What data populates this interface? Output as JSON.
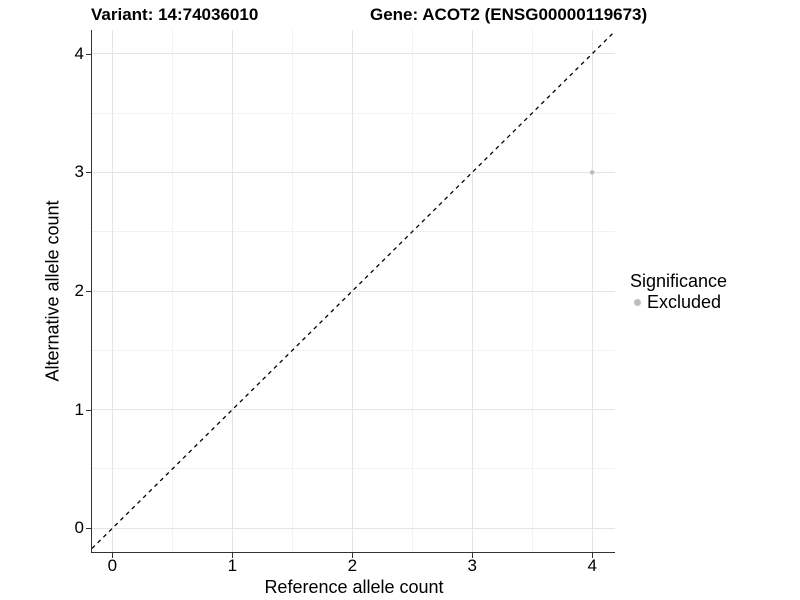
{
  "header": {
    "variant_title": "Variant: 14:74036010",
    "gene_title": "Gene: ACOT2 (ENSG00000119673)"
  },
  "chart_data": {
    "type": "scatter",
    "title": "Variant: 14:74036010 — Gene: ACOT2 (ENSG00000119673)",
    "xlabel": "Reference allele count",
    "ylabel": "Alternative allele count",
    "xlim": [
      -0.17,
      4.19
    ],
    "ylim": [
      -0.2,
      4.2
    ],
    "x_ticks": [
      0,
      1,
      2,
      3,
      4
    ],
    "y_ticks": [
      0,
      1,
      2,
      3,
      4
    ],
    "x_minor_ticks": [
      0.5,
      1.5,
      2.5,
      3.5
    ],
    "y_minor_ticks": [
      0.5,
      1.5,
      2.5,
      3.5
    ],
    "grid": true,
    "reference_line": {
      "kind": "identity",
      "style": "dashed",
      "color": "#000000"
    },
    "series": [
      {
        "name": "Excluded",
        "color": "#bdbdbd",
        "points": [
          {
            "x": 4,
            "y": 3
          }
        ]
      }
    ]
  },
  "legend": {
    "title": "Significance",
    "position": "right",
    "items": [
      {
        "label": "Excluded",
        "color": "#bdbdbd",
        "marker": "circle"
      }
    ]
  },
  "colors": {
    "background": "#ffffff",
    "grid_major": "#e5e5e5",
    "grid_minor": "#f2f2f2",
    "axis_line": "#333333",
    "tick_mark": "#333333",
    "text": "#000000"
  }
}
